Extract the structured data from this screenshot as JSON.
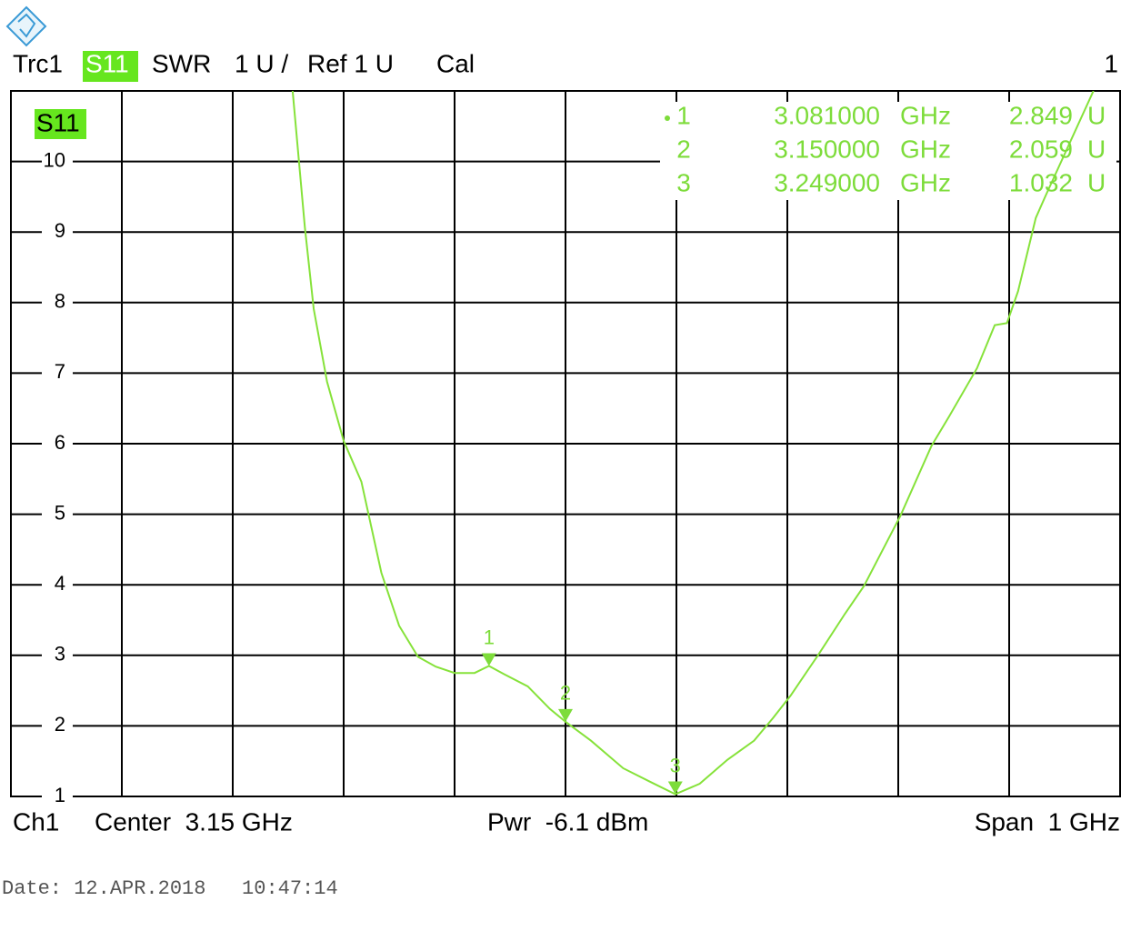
{
  "chart_data": {
    "type": "line",
    "header": {
      "trace": "Trc1",
      "measurement": "S11",
      "format": "SWR",
      "scale": "1 U /",
      "reference": "Ref 1 U",
      "calibration": "Cal",
      "window": "1"
    },
    "footer": {
      "channel": "Ch1",
      "center": "Center  3.15 GHz",
      "power": "Pwr  -6.1 dBm",
      "span": "Span  1 GHz"
    },
    "date": "Date: 12.APR.2018   10:47:14",
    "x": [
      2.904,
      2.915,
      2.923,
      2.935,
      2.95,
      2.966,
      2.984,
      3.0,
      3.017,
      3.033,
      3.05,
      3.068,
      3.081,
      3.095,
      3.116,
      3.136,
      3.15,
      3.173,
      3.202,
      3.226,
      3.249,
      3.271,
      3.296,
      3.32,
      3.337,
      3.353,
      3.378,
      3.402,
      3.419,
      3.452,
      3.48,
      3.496,
      3.521,
      3.537,
      3.548,
      3.558,
      3.574,
      3.583,
      3.626
    ],
    "series": [
      {
        "name": "S11",
        "color": "#86e23a",
        "values": [
          11.0,
          9.07,
          7.91,
          6.88,
          6.04,
          5.46,
          4.17,
          3.42,
          2.98,
          2.84,
          2.75,
          2.75,
          2.849,
          2.73,
          2.56,
          2.24,
          2.059,
          1.79,
          1.4,
          1.21,
          1.032,
          1.18,
          1.52,
          1.79,
          2.11,
          2.43,
          3.01,
          3.59,
          3.98,
          4.98,
          5.97,
          6.39,
          7.07,
          7.68,
          7.71,
          8.16,
          9.2,
          9.52,
          11.0
        ]
      }
    ],
    "xlim": [
      2.65,
      3.65
    ],
    "xticks": [
      2.75,
      2.85,
      2.95,
      3.05,
      3.15,
      3.25,
      3.35,
      3.45,
      3.55
    ],
    "ylim": [
      1,
      11
    ],
    "yticks": [
      1,
      2,
      3,
      4,
      5,
      6,
      7,
      8,
      9,
      10
    ],
    "grid": true,
    "markers": [
      {
        "name": "1",
        "x": {
          "value": 3.081,
          "label": "3.081000"
        },
        "x_unit": "GHz",
        "y": 2.849,
        "y_unit": "U"
      },
      {
        "name": "2",
        "x": {
          "value": 3.15,
          "label": "3.150000"
        },
        "x_unit": "GHz",
        "y": 2.059,
        "y_unit": "U"
      },
      {
        "name": "3",
        "x": {
          "value": 3.249,
          "label": "3.249000"
        },
        "x_unit": "GHz",
        "y": 1.032,
        "y_unit": "U"
      }
    ]
  }
}
